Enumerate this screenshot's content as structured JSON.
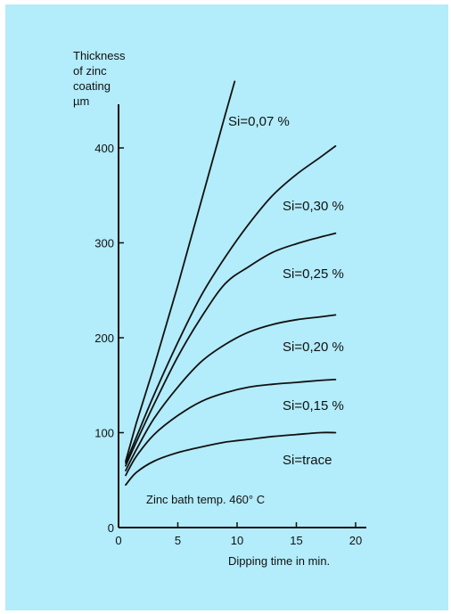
{
  "colors": {
    "background": "#b3ecfa",
    "ink": "#111111"
  },
  "chart_data": {
    "type": "line",
    "ylabel_lines": [
      "Thickness",
      "of zinc",
      "coating",
      "µm"
    ],
    "xlabel": "Dipping time in min.",
    "annotation": "Zinc bath temp. 460° C",
    "xlim": [
      0,
      20
    ],
    "ylim": [
      0,
      450
    ],
    "xticks": [
      0,
      5,
      10,
      15,
      20
    ],
    "yticks": [
      0,
      100,
      200,
      300,
      400
    ],
    "grid": false,
    "series": [
      {
        "name": "Si=0,07 %",
        "points": [
          [
            0.6,
            70
          ],
          [
            1.5,
            110
          ],
          [
            3,
            170
          ],
          [
            5,
            255
          ],
          [
            7,
            345
          ],
          [
            9,
            435
          ],
          [
            9.8,
            470
          ]
        ]
      },
      {
        "name": "Si=0,30 %",
        "points": [
          [
            0.6,
            68
          ],
          [
            1.5,
            95
          ],
          [
            3,
            140
          ],
          [
            5,
            195
          ],
          [
            7,
            245
          ],
          [
            9,
            285
          ],
          [
            11,
            320
          ],
          [
            13,
            350
          ],
          [
            15,
            372
          ],
          [
            17,
            390
          ],
          [
            18.3,
            402
          ]
        ]
      },
      {
        "name": "Si=0,25 %",
        "points": [
          [
            0.6,
            65
          ],
          [
            1.5,
            90
          ],
          [
            3,
            130
          ],
          [
            5,
            180
          ],
          [
            7,
            222
          ],
          [
            9,
            257
          ],
          [
            11,
            275
          ],
          [
            13,
            290
          ],
          [
            15,
            299
          ],
          [
            17,
            306
          ],
          [
            18.3,
            310
          ]
        ]
      },
      {
        "name": "Si=0,20 %",
        "points": [
          [
            0.6,
            60
          ],
          [
            1.5,
            82
          ],
          [
            3,
            115
          ],
          [
            5,
            148
          ],
          [
            7,
            175
          ],
          [
            9,
            193
          ],
          [
            11,
            206
          ],
          [
            13,
            214
          ],
          [
            15,
            219
          ],
          [
            17,
            222
          ],
          [
            18.3,
            224
          ]
        ]
      },
      {
        "name": "Si=0,15 %",
        "points": [
          [
            0.6,
            55
          ],
          [
            1.5,
            75
          ],
          [
            3,
            98
          ],
          [
            5,
            118
          ],
          [
            7,
            133
          ],
          [
            9,
            142
          ],
          [
            11,
            148
          ],
          [
            13,
            151
          ],
          [
            15,
            153
          ],
          [
            17,
            155
          ],
          [
            18.3,
            156
          ]
        ]
      },
      {
        "name": "Si=trace",
        "points": [
          [
            0.6,
            45
          ],
          [
            1.5,
            58
          ],
          [
            3,
            70
          ],
          [
            5,
            79
          ],
          [
            7,
            85
          ],
          [
            9,
            90
          ],
          [
            11,
            93
          ],
          [
            13,
            96
          ],
          [
            15,
            98
          ],
          [
            17,
            100
          ],
          [
            18.3,
            100
          ]
        ]
      }
    ]
  }
}
